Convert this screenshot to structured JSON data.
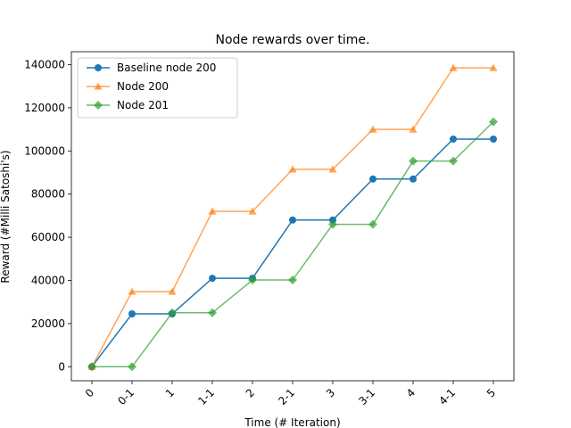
{
  "chart_data": {
    "type": "line",
    "title": "Node rewards over time.",
    "xlabel": "Time (# Iteration)",
    "ylabel": "Reward (#Milli Satoshi's)",
    "categories": [
      "0",
      "0-1",
      "1",
      "1-1",
      "2",
      "2-1",
      "3",
      "3-1",
      "4",
      "4-1",
      "5"
    ],
    "ylim": [
      -6500,
      146000
    ],
    "yticks": [
      0,
      20000,
      40000,
      60000,
      80000,
      100000,
      120000,
      140000
    ],
    "ytick_labels": [
      "0",
      "20000",
      "40000",
      "60000",
      "80000",
      "100000",
      "120000",
      "140000"
    ],
    "grid": false,
    "legend_position": "top-left",
    "series": [
      {
        "name": "Baseline node 200",
        "color": "#1f77b4",
        "marker": "circle",
        "values": [
          0,
          24500,
          24500,
          41000,
          41000,
          68000,
          68000,
          87000,
          87000,
          105500,
          105500
        ]
      },
      {
        "name": "Node 200",
        "color": "#ff7f0e",
        "marker": "triangle",
        "values": [
          0,
          34800,
          34800,
          72000,
          72000,
          91500,
          91500,
          110000,
          110000,
          138500,
          138500
        ]
      },
      {
        "name": "Node 201",
        "color": "#2ca02c",
        "marker": "diamond",
        "values": [
          0,
          0,
          25000,
          25000,
          40200,
          40200,
          66000,
          66000,
          95300,
          95300,
          113500
        ]
      }
    ]
  }
}
